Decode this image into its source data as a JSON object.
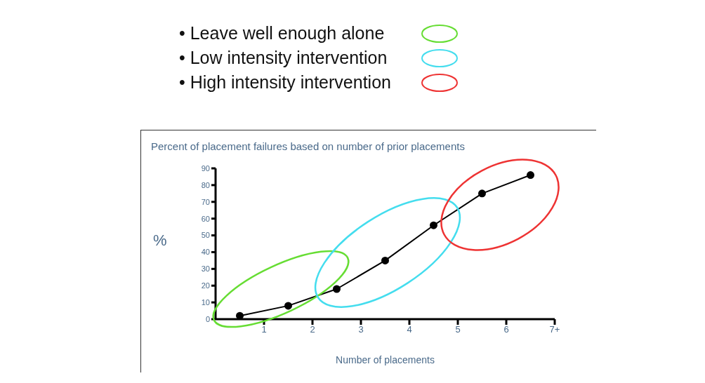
{
  "chart_data": {
    "type": "line",
    "title": "Percent of placement failures based on number of prior placements",
    "xlabel": "Number of placements",
    "ylabel": "%",
    "annotations": [
      "• Leave well enough alone",
      "• Low intensity intervention",
      "• High intensity intervention"
    ],
    "x": [
      0.5,
      1.5,
      2.5,
      3.5,
      4.5,
      5.5,
      6.5
    ],
    "series": [
      {
        "color": "#000000",
        "values": [
          2,
          8,
          18,
          35,
          56,
          75,
          86
        ]
      }
    ],
    "xlim": [
      0,
      7
    ],
    "xticks": [
      1,
      2,
      3,
      4,
      5,
      6,
      {
        "value": 7,
        "label": "7+"
      }
    ],
    "ylim": [
      0,
      90
    ],
    "yticks": [
      0,
      10,
      20,
      30,
      40,
      50,
      60,
      70,
      80,
      90
    ],
    "grid": false,
    "marker": "circle",
    "line_style": "solid"
  }
}
